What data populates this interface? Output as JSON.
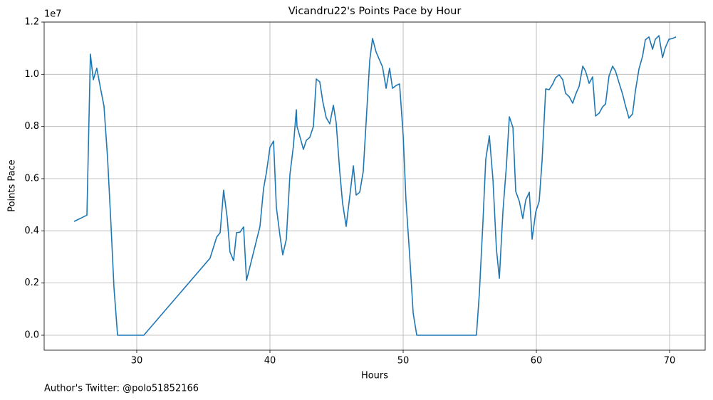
{
  "chart_data": {
    "type": "line",
    "title": "Vicandru22's Points Pace by Hour",
    "x_label": "Hours",
    "y_label": "Points Pace",
    "y_offset_label": "1e7",
    "footnote": "Author's Twitter: @polo51852166",
    "grid": true,
    "xlim": [
      23.05,
      72.67
    ],
    "ylim": [
      -0.0573,
      1.2
    ],
    "xticks": [
      30,
      40,
      50,
      60,
      70
    ],
    "yticks": [
      {
        "value": 0,
        "label": "0.0"
      },
      0.2,
      0.4,
      0.6,
      0.8,
      {
        "value": 1,
        "label": "1.0"
      },
      1.2
    ],
    "x": [
      25.3,
      26.26,
      26.52,
      26.74,
      27.0,
      27.27,
      27.54,
      27.81,
      28.07,
      28.29,
      28.56,
      30.53,
      35.5,
      36.0,
      36.26,
      36.52,
      36.79,
      37.0,
      37.27,
      37.49,
      37.75,
      38.02,
      38.24,
      39.25,
      39.52,
      39.73,
      40.0,
      40.27,
      40.48,
      40.75,
      40.96,
      41.23,
      41.5,
      41.76,
      41.98,
      42.03,
      42.25,
      42.51,
      42.73,
      42.99,
      43.26,
      43.48,
      43.74,
      43.96,
      44.22,
      44.49,
      44.76,
      44.97,
      45.24,
      45.45,
      45.72,
      45.99,
      46.26,
      46.47,
      46.74,
      47.0,
      47.22,
      47.49,
      47.7,
      47.97,
      48.24,
      48.45,
      48.72,
      48.98,
      49.2,
      49.47,
      49.73,
      50.0,
      50.21,
      50.48,
      50.75,
      51.02,
      55.5,
      55.72,
      55.99,
      56.2,
      56.47,
      56.74,
      57.0,
      57.22,
      57.49,
      57.75,
      57.97,
      58.24,
      58.45,
      58.72,
      58.98,
      59.2,
      59.47,
      59.68,
      59.95,
      60.21,
      60.43,
      60.7,
      60.96,
      61.23,
      61.44,
      61.71,
      61.98,
      62.19,
      62.46,
      62.73,
      62.94,
      63.21,
      63.48,
      63.69,
      63.96,
      64.22,
      64.44,
      64.71,
      64.97,
      65.19,
      65.45,
      65.72,
      65.94,
      66.2,
      66.47,
      66.68,
      66.95,
      67.22,
      67.43,
      67.7,
      67.97,
      68.18,
      68.45,
      68.72,
      68.93,
      69.2,
      69.47,
      69.68,
      69.95,
      70.21,
      70.48
    ],
    "series": [
      {
        "name": "Points Pace",
        "color": "#1f77b4",
        "values": [
          0.436,
          0.46,
          1.077,
          0.979,
          1.023,
          0.949,
          0.878,
          0.679,
          0.42,
          0.183,
          0,
          0,
          0.295,
          0.376,
          0.393,
          0.556,
          0.45,
          0.319,
          0.286,
          0.393,
          0.395,
          0.415,
          0.21,
          0.417,
          0.562,
          0.622,
          0.72,
          0.744,
          0.491,
          0.382,
          0.308,
          0.368,
          0.616,
          0.725,
          0.864,
          0.8,
          0.761,
          0.712,
          0.747,
          0.758,
          0.8,
          0.982,
          0.971,
          0.897,
          0.834,
          0.81,
          0.881,
          0.815,
          0.627,
          0.507,
          0.417,
          0.532,
          0.649,
          0.537,
          0.548,
          0.627,
          0.818,
          1.053,
          1.137,
          1.085,
          1.053,
          1.028,
          0.946,
          1.023,
          0.946,
          0.957,
          0.963,
          0.766,
          0.518,
          0.311,
          0.085,
          0,
          0,
          0.161,
          0.436,
          0.674,
          0.764,
          0.597,
          0.33,
          0.218,
          0.475,
          0.649,
          0.837,
          0.796,
          0.551,
          0.513,
          0.447,
          0.518,
          0.548,
          0.368,
          0.472,
          0.513,
          0.671,
          0.944,
          0.941,
          0.963,
          0.987,
          0.998,
          0.979,
          0.927,
          0.914,
          0.889,
          0.922,
          0.954,
          1.031,
          1.012,
          0.965,
          0.99,
          0.84,
          0.851,
          0.875,
          0.886,
          0.993,
          1.031,
          1.012,
          0.968,
          0.924,
          0.881,
          0.832,
          0.848,
          0.935,
          1.02,
          1.069,
          1.132,
          1.143,
          1.096,
          1.134,
          1.148,
          1.064,
          1.102,
          1.134,
          1.137,
          1.143
        ]
      }
    ]
  }
}
